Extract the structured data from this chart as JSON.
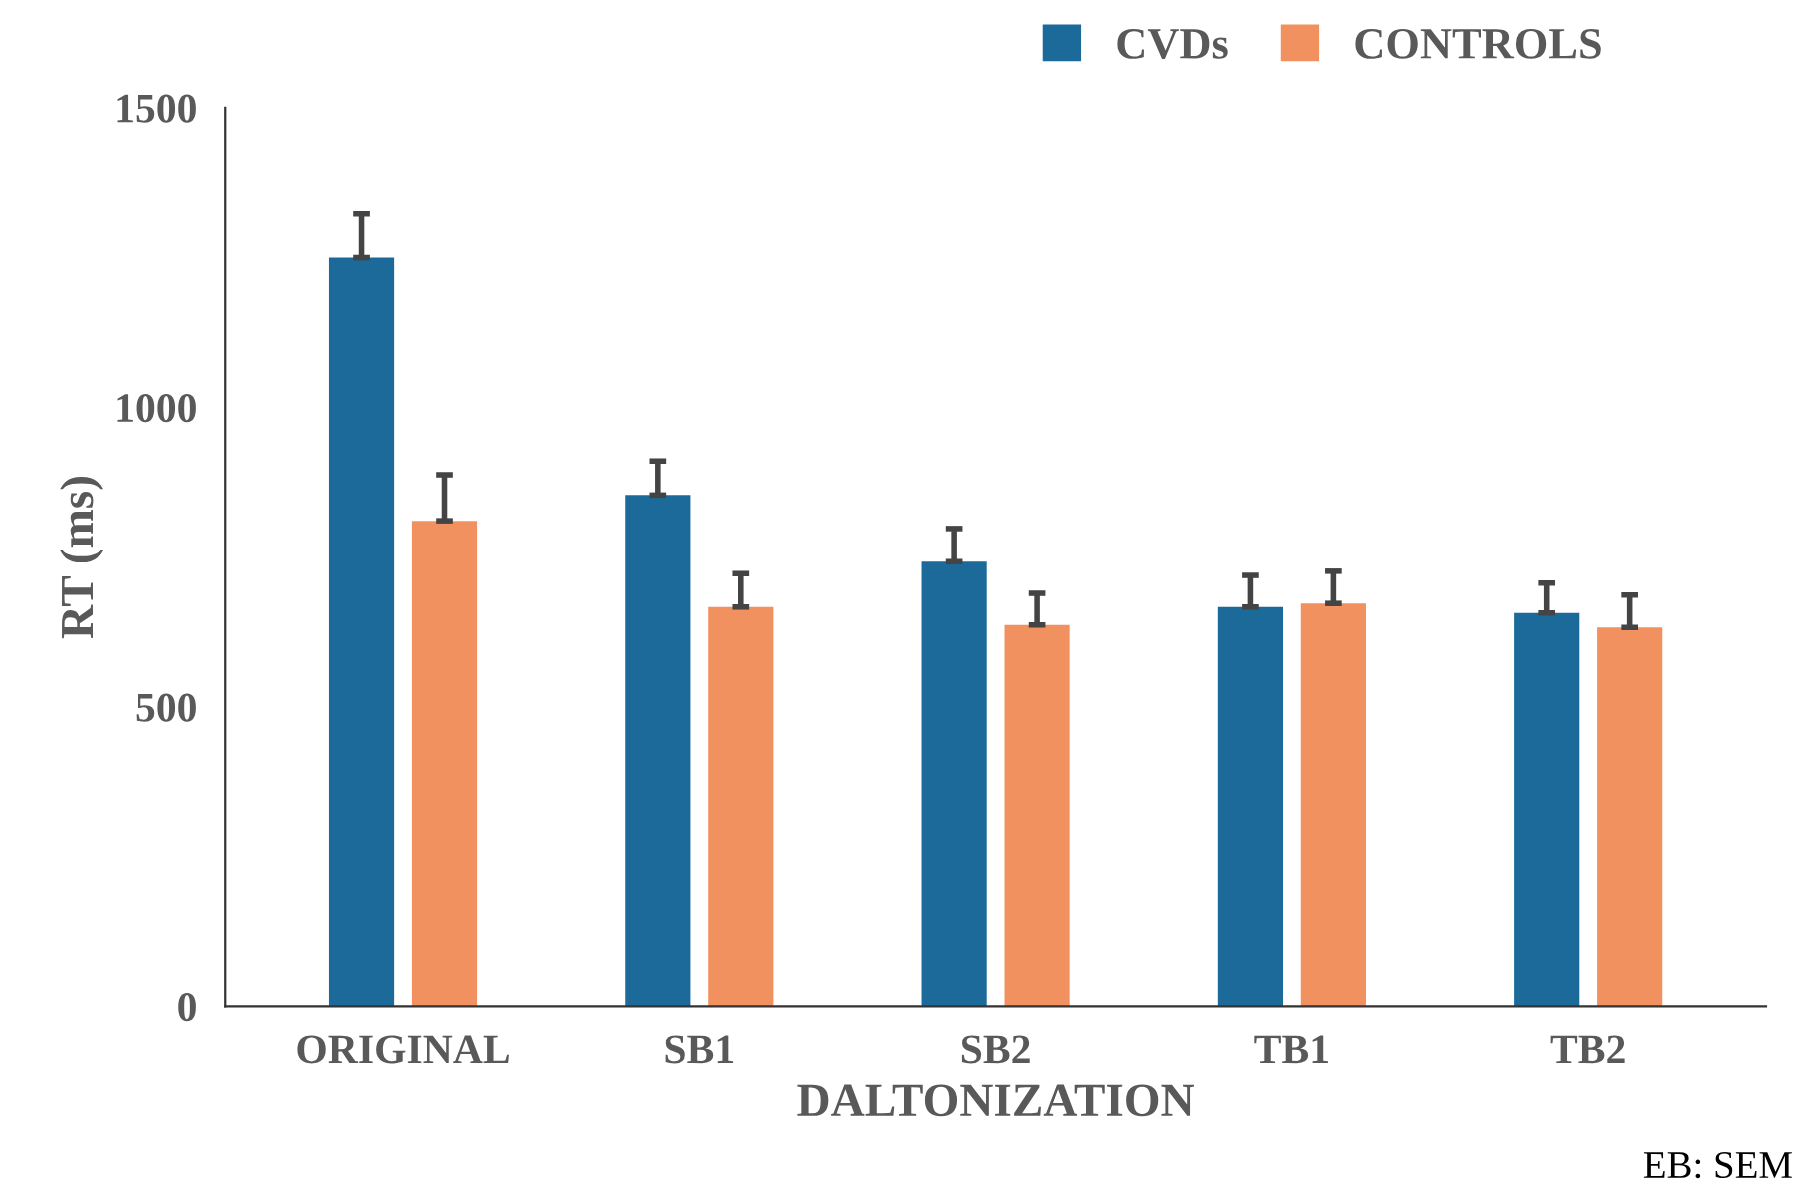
{
  "chart_data": {
    "type": "bar",
    "xlabel": "DALTONIZATION",
    "ylabel": "RT (ms)",
    "categories": [
      "ORIGINAL",
      "SB1",
      "SB2",
      "TB1",
      "TB2"
    ],
    "series": [
      {
        "name": "CVDs",
        "color": "#1c6a9a",
        "values": [
          1250,
          853,
          743,
          667,
          657
        ],
        "errors": [
          [
            1250,
            1323
          ],
          [
            853,
            910
          ],
          [
            743,
            797
          ],
          [
            667,
            720
          ],
          [
            657,
            707
          ]
        ]
      },
      {
        "name": "CONTROLS",
        "color": "#f0915f",
        "values": [
          810,
          667,
          637,
          673,
          633
        ],
        "errors": [
          [
            810,
            887
          ],
          [
            667,
            723
          ],
          [
            637,
            690
          ],
          [
            673,
            727
          ],
          [
            633,
            687
          ]
        ]
      }
    ],
    "ylim": [
      0,
      1500
    ],
    "yticks": [
      0,
      500,
      1000,
      1500
    ],
    "grid": false,
    "legend": "top right",
    "annotations": [
      "EB: SEM"
    ]
  }
}
